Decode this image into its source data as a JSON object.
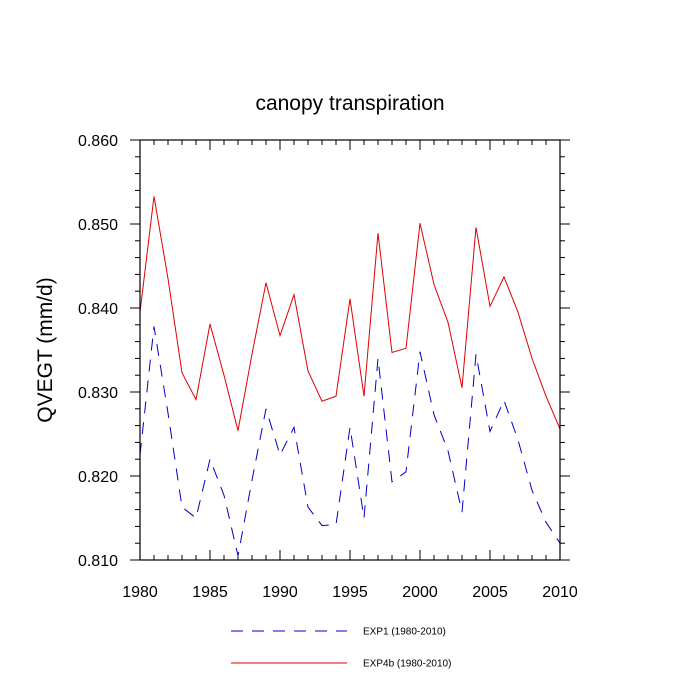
{
  "chart_data": {
    "type": "line",
    "title": "canopy transpiration",
    "xlabel": "",
    "ylabel": "QVEGT  (mm/d)",
    "xlim": [
      1980,
      2010
    ],
    "ylim": [
      0.81,
      0.86
    ],
    "x_ticks": [
      1980,
      1985,
      1990,
      1995,
      2000,
      2005,
      2010
    ],
    "x_tick_labels": [
      "1980",
      "1985",
      "1990",
      "1995",
      "2000",
      "2005",
      "2010"
    ],
    "y_ticks": [
      0.81,
      0.82,
      0.83,
      0.84,
      0.85,
      0.86
    ],
    "y_tick_labels": [
      "0.810",
      "0.820",
      "0.830",
      "0.840",
      "0.850",
      "0.860"
    ],
    "grid": false,
    "legend_position": "bottom",
    "x": [
      1980,
      1981,
      1982,
      1983,
      1984,
      1985,
      1986,
      1987,
      1988,
      1989,
      1990,
      1991,
      1992,
      1993,
      1994,
      1995,
      1996,
      1997,
      1998,
      1999,
      2000,
      2001,
      2002,
      2003,
      2004,
      2005,
      2006,
      2007,
      2008,
      2009,
      2010
    ],
    "series": [
      {
        "name": "EXP1 (1980-2010)",
        "color": "#0000cc",
        "line_style": "dashed",
        "values": [
          0.8225,
          0.8378,
          0.8275,
          0.8163,
          0.815,
          0.822,
          0.8177,
          0.8105,
          0.8195,
          0.828,
          0.8225,
          0.8258,
          0.8163,
          0.8141,
          0.8142,
          0.8258,
          0.815,
          0.834,
          0.8193,
          0.8205,
          0.8348,
          0.8273,
          0.823,
          0.8157,
          0.8345,
          0.8253,
          0.829,
          0.8243,
          0.8183,
          0.8145,
          0.812
        ]
      },
      {
        "name": "EXP4b (1980-2010)",
        "color": "#e00000",
        "line_style": "solid",
        "values": [
          0.8395,
          0.8533,
          0.8435,
          0.8323,
          0.8291,
          0.8381,
          0.832,
          0.8254,
          0.8345,
          0.843,
          0.8367,
          0.8416,
          0.8325,
          0.8289,
          0.8295,
          0.8411,
          0.8295,
          0.8489,
          0.8347,
          0.8352,
          0.8501,
          0.8428,
          0.8383,
          0.8305,
          0.8496,
          0.8402,
          0.8437,
          0.8395,
          0.834,
          0.8295,
          0.8256
        ]
      }
    ]
  }
}
